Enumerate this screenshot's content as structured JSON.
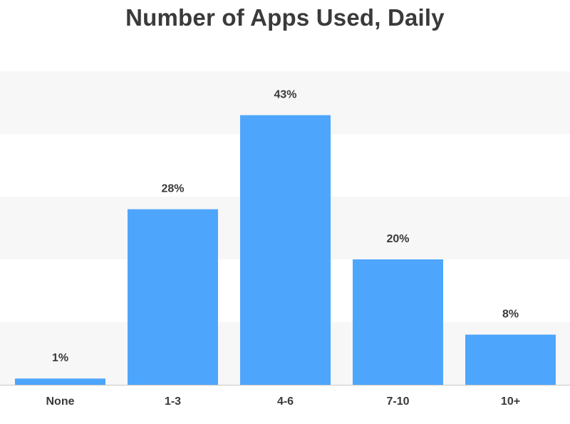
{
  "chart_data": {
    "type": "bar",
    "title": "Number of Apps Used, Daily",
    "categories": [
      "None",
      "1-3",
      "4-6",
      "7-10",
      "10+"
    ],
    "values": [
      1,
      28,
      43,
      20,
      8
    ],
    "value_labels": [
      "1%",
      "28%",
      "43%",
      "20%",
      "8%"
    ],
    "unit": "%",
    "ylim": [
      0,
      50
    ],
    "grid": "horizontal alternating bands",
    "legend": "none",
    "bar_color": "#4ea6fc",
    "band_color": "#f7f7f7",
    "text_color": "#3a3a3a",
    "axis_color": "#c8c8c8"
  }
}
